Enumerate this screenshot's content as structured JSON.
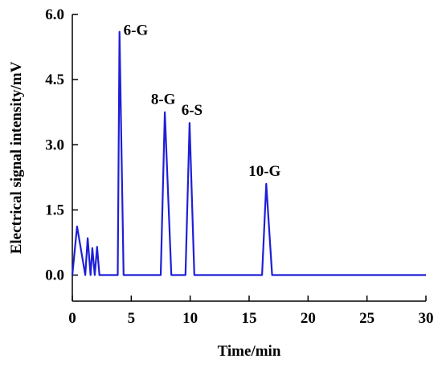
{
  "chart_data": {
    "type": "line",
    "xlabel": "Time/min",
    "ylabel": "Electrical signal intensity/mV",
    "xlim": [
      0,
      30
    ],
    "ylim": [
      -0.6,
      6.0
    ],
    "xticks": [
      0,
      5,
      10,
      15,
      20,
      25,
      30
    ],
    "yticks": [
      0.0,
      1.5,
      3.0,
      4.5,
      6.0
    ],
    "xtick_labels": [
      "0",
      "5",
      "10",
      "15",
      "20",
      "25",
      "30"
    ],
    "ytick_labels": [
      "0.0",
      "1.5",
      "3.0",
      "4.5",
      "6.0"
    ],
    "grid": false,
    "line_color": "#1f1fd8",
    "series": [
      {
        "x": [
          0,
          0.4,
          1.1,
          1.3,
          1.55,
          1.7,
          1.9,
          2.1,
          2.3,
          3.85,
          4.0,
          4.35,
          7.5,
          7.85,
          8.4,
          9.6,
          9.95,
          10.35,
          16.1,
          16.45,
          16.95,
          30
        ],
        "y": [
          0,
          1.12,
          0,
          0.85,
          0,
          0.62,
          0,
          0.65,
          0,
          0,
          5.6,
          0,
          0,
          3.75,
          0,
          0,
          3.5,
          0,
          0,
          2.1,
          0,
          0
        ]
      }
    ],
    "annotations": [
      {
        "text": "6-G",
        "x": 4.0,
        "y": 5.6
      },
      {
        "text": "8-G",
        "x": 7.85,
        "y": 3.75
      },
      {
        "text": "6-S",
        "x": 9.95,
        "y": 3.5
      },
      {
        "text": "10-G",
        "x": 16.45,
        "y": 2.1
      }
    ]
  }
}
